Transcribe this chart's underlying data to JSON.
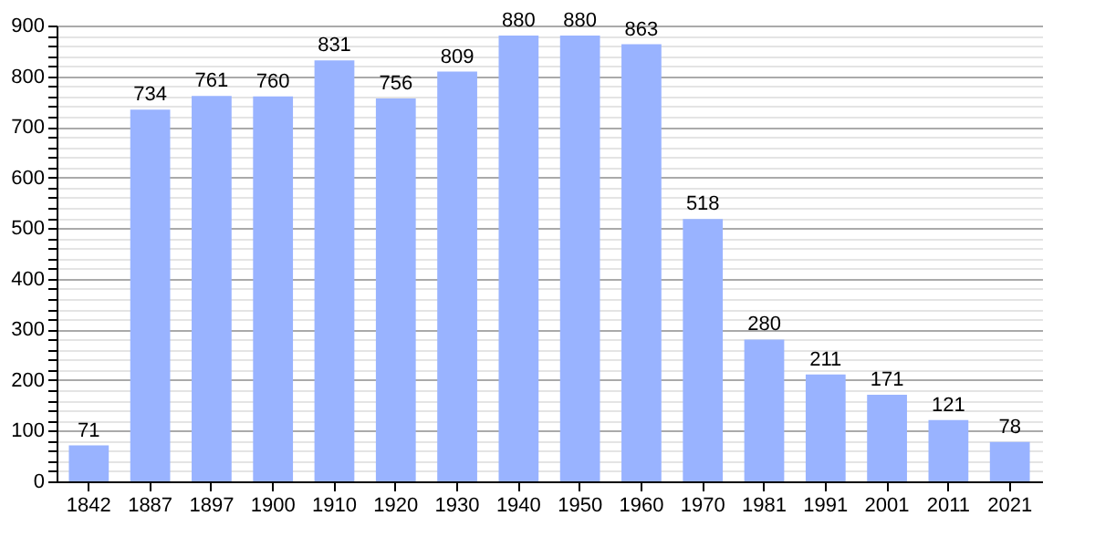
{
  "chart_data": {
    "type": "bar",
    "categories": [
      "1842",
      "1887",
      "1897",
      "1900",
      "1910",
      "1920",
      "1930",
      "1940",
      "1950",
      "1960",
      "1970",
      "1981",
      "1991",
      "2001",
      "2011",
      "2021"
    ],
    "values": [
      71,
      734,
      761,
      760,
      831,
      756,
      809,
      880,
      880,
      863,
      518,
      280,
      211,
      171,
      121,
      78
    ],
    "color": "#99b3ff",
    "ylim": [
      0,
      900
    ],
    "yticks": [
      0,
      {
        "value": 20,
        "label": null
      },
      {
        "value": 40,
        "label": null
      },
      {
        "value": 60,
        "label": null
      },
      {
        "value": 80,
        "label": null
      },
      100,
      {
        "value": 120,
        "label": null
      },
      {
        "value": 140,
        "label": null
      },
      {
        "value": 160,
        "label": null
      },
      {
        "value": 180,
        "label": null
      },
      200,
      {
        "value": 220,
        "label": null
      },
      {
        "value": 240,
        "label": null
      },
      {
        "value": 260,
        "label": null
      },
      {
        "value": 280,
        "label": null
      },
      300,
      {
        "value": 320,
        "label": null
      },
      {
        "value": 340,
        "label": null
      },
      {
        "value": 360,
        "label": null
      },
      {
        "value": 380,
        "label": null
      },
      400,
      {
        "value": 420,
        "label": null
      },
      {
        "value": 440,
        "label": null
      },
      {
        "value": 460,
        "label": null
      },
      {
        "value": 480,
        "label": null
      },
      500,
      {
        "value": 520,
        "label": null
      },
      {
        "value": 540,
        "label": null
      },
      {
        "value": 560,
        "label": null
      },
      {
        "value": 580,
        "label": null
      },
      600,
      {
        "value": 620,
        "label": null
      },
      {
        "value": 640,
        "label": null
      },
      {
        "value": 660,
        "label": null
      },
      {
        "value": 680,
        "label": null
      },
      700,
      {
        "value": 720,
        "label": null
      },
      {
        "value": 740,
        "label": null
      },
      {
        "value": 760,
        "label": null
      },
      {
        "value": 780,
        "label": null
      },
      800,
      {
        "value": 820,
        "label": null
      },
      {
        "value": 840,
        "label": null
      },
      {
        "value": 860,
        "label": null
      },
      {
        "value": 880,
        "label": null
      },
      900
    ],
    "grid": "y",
    "data_labels": true
  }
}
